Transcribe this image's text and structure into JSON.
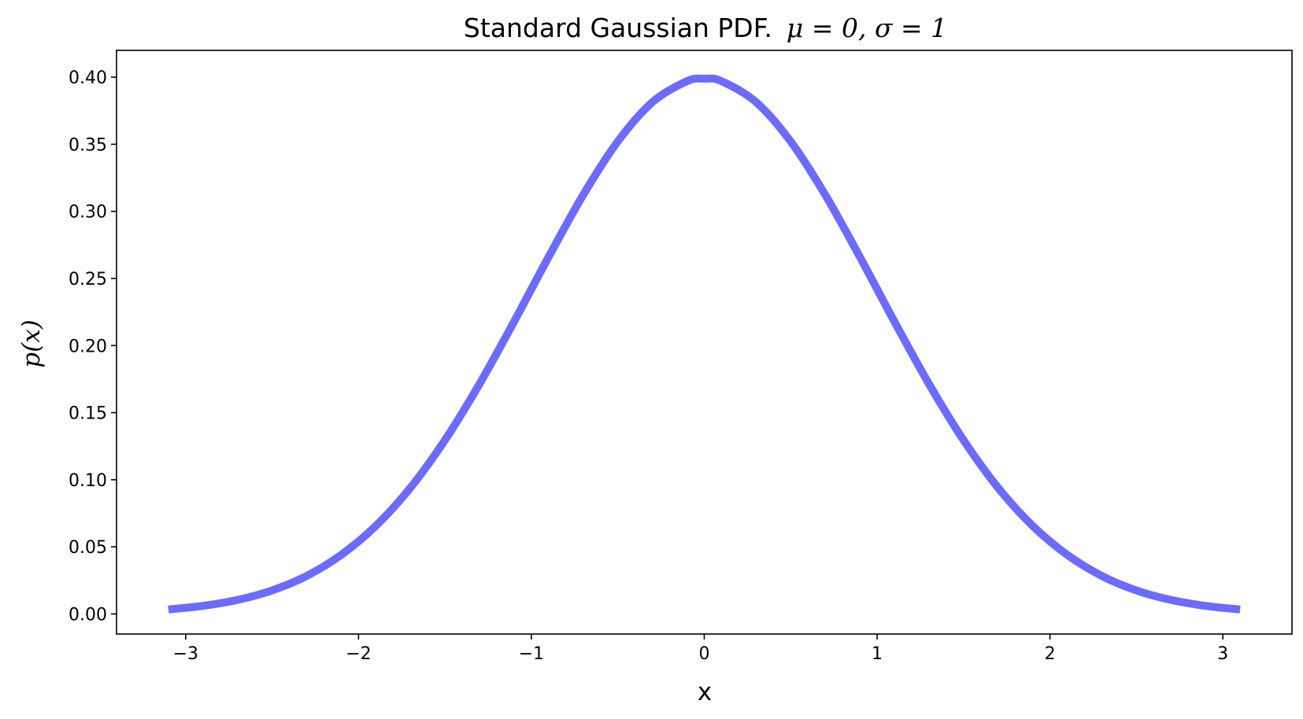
{
  "chart_data": {
    "type": "line",
    "title": "Standard Gaussian PDF.  μ = 0, σ = 1",
    "title_prefix": "Standard Gaussian PDF.",
    "title_math": "μ = 0, σ = 1",
    "xlabel": "x",
    "ylabel": "p(x)",
    "xlim": [
      -3.4,
      3.4
    ],
    "ylim": [
      -0.015,
      0.42
    ],
    "xticks": [
      -3,
      -2,
      -1,
      0,
      1,
      2,
      3
    ],
    "xtick_labels": [
      "−3",
      "−2",
      "−1",
      "0",
      "1",
      "2",
      "3"
    ],
    "yticks": [
      0.0,
      0.05,
      0.1,
      0.15,
      0.2,
      0.25,
      0.3,
      0.35,
      0.4
    ],
    "ytick_labels": [
      "0.00",
      "0.05",
      "0.10",
      "0.15",
      "0.20",
      "0.25",
      "0.30",
      "0.35",
      "0.40"
    ],
    "grid": false,
    "series": [
      {
        "color": "#6b6bff",
        "x": [
          -3.1,
          -2.9,
          -2.7,
          -2.5,
          -2.3,
          -2.1,
          -1.9,
          -1.7,
          -1.5,
          -1.3,
          -1.1,
          -0.9,
          -0.7,
          -0.5,
          -0.3,
          -0.1,
          0.0,
          0.1,
          0.3,
          0.5,
          0.7,
          0.9,
          1.1,
          1.3,
          1.5,
          1.7,
          1.9,
          2.1,
          2.3,
          2.5,
          2.7,
          2.9,
          3.1
        ],
        "y": [
          0.0033,
          0.006,
          0.0104,
          0.0175,
          0.0283,
          0.044,
          0.0656,
          0.094,
          0.1295,
          0.1714,
          0.2179,
          0.2661,
          0.3123,
          0.3521,
          0.3814,
          0.397,
          0.3989,
          0.397,
          0.3814,
          0.3521,
          0.3123,
          0.2661,
          0.2179,
          0.1714,
          0.1295,
          0.094,
          0.0656,
          0.044,
          0.0283,
          0.0175,
          0.0104,
          0.006,
          0.0033
        ]
      }
    ]
  }
}
